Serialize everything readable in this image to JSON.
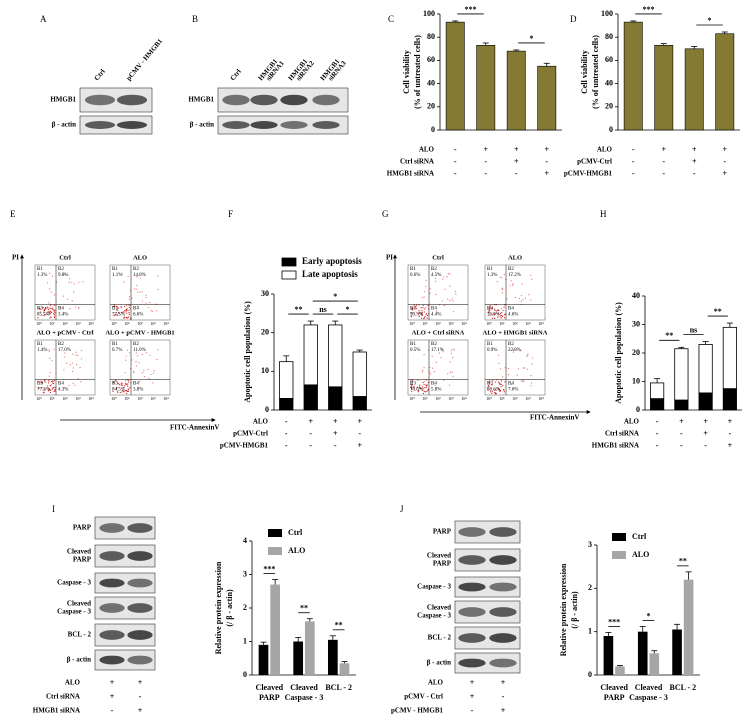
{
  "blot_A": {
    "label": "A",
    "lanes": [
      [
        "Ctrl"
      ],
      [
        "pCMV - HMGB1"
      ]
    ],
    "rows": [
      [
        "HMGB1"
      ],
      [
        "β - actin"
      ]
    ]
  },
  "blot_B": {
    "label": "B",
    "lanes": [
      [
        "Ctrl"
      ],
      [
        "HMGB1",
        "siRNA1"
      ],
      [
        "HMGB1",
        "siRNA2"
      ],
      [
        "HMGB1",
        "siRNA3"
      ]
    ],
    "rows": [
      [
        "HMGB1"
      ],
      [
        "β - actin"
      ]
    ]
  },
  "flow_E": {
    "label": "E",
    "y_axis": "PI",
    "x_axis": "FITC-AnnexinV",
    "ticks": [
      "10⁰",
      "10¹",
      "10²",
      "10³",
      "10⁴"
    ],
    "plots": [
      {
        "title": "Ctrl",
        "quadrants": [
          {
            "name": "B1",
            "value": "1.3%"
          },
          {
            "name": "B2",
            "value": "9.8%"
          },
          {
            "name": "B3",
            "value": "85.5%"
          },
          {
            "name": "B4",
            "value": "3.4%"
          }
        ]
      },
      {
        "title": "ALO",
        "quadrants": [
          {
            "name": "B1",
            "value": "1.1%"
          },
          {
            "name": "B2",
            "value": "14.8%"
          },
          {
            "name": "B3",
            "value": "77.5%"
          },
          {
            "name": "B4",
            "value": "6.6%"
          }
        ]
      },
      {
        "title": "ALO + pCMV - Ctrl",
        "quadrants": [
          {
            "name": "B1",
            "value": "1.4%"
          },
          {
            "name": "B2",
            "value": "17.0%"
          },
          {
            "name": "B3",
            "value": "77.3%"
          },
          {
            "name": "B4",
            "value": "4.3%"
          }
        ]
      },
      {
        "title": "ALO + pCMV - HMGB1",
        "quadrants": [
          {
            "name": "B1",
            "value": "0.7%"
          },
          {
            "name": "B2",
            "value": "11.0%"
          },
          {
            "name": "B3",
            "value": "84.5%"
          },
          {
            "name": "B4",
            "value": "3.8%"
          }
        ]
      }
    ]
  },
  "flow_G": {
    "label": "G",
    "y_axis": "PI",
    "x_axis": "FITC-AnnexinV",
    "ticks": [
      "10⁰",
      "10¹",
      "10²",
      "10³",
      "10⁴"
    ],
    "plots": [
      {
        "title": "Ctrl",
        "quadrants": [
          {
            "name": "B1",
            "value": "0.6%"
          },
          {
            "name": "B2",
            "value": "4.5%"
          },
          {
            "name": "B3",
            "value": "90.5%"
          },
          {
            "name": "B4",
            "value": "4.4%"
          }
        ]
      },
      {
        "title": "ALO",
        "quadrants": [
          {
            "name": "B1",
            "value": "1.3%"
          },
          {
            "name": "B2",
            "value": "17.2%"
          },
          {
            "name": "B3",
            "value": "76.9%"
          },
          {
            "name": "B4",
            "value": "4.6%"
          }
        ]
      },
      {
        "title": "ALO + Ctrl siRNA",
        "quadrants": [
          {
            "name": "B1",
            "value": "0.5%"
          },
          {
            "name": "B2",
            "value": "17.1%"
          },
          {
            "name": "B3",
            "value": "76.6%"
          },
          {
            "name": "B4",
            "value": "5.8%"
          }
        ]
      },
      {
        "title": "ALO + HMGB1 siRNA",
        "quadrants": [
          {
            "name": "B1",
            "value": "0.9%"
          },
          {
            "name": "B2",
            "value": "22.9%"
          },
          {
            "name": "B3",
            "value": "68.6%"
          },
          {
            "name": "B4",
            "value": "7.6%"
          }
        ]
      }
    ]
  },
  "blot_I": {
    "label": "I",
    "rows": [
      [
        "PARP"
      ],
      [
        "Cleaved",
        "PARP"
      ],
      [
        "Caspase - 3"
      ],
      [
        "Cleaved",
        "Caspase - 3"
      ],
      [
        "BCL - 2"
      ],
      [
        "β - actin"
      ]
    ],
    "conditions": [
      {
        "name": "ALO",
        "signs": [
          "+",
          "+"
        ]
      },
      {
        "name": "Ctrl siRNA",
        "signs": [
          "+",
          "-"
        ]
      },
      {
        "name": "HMGB1 siRNA",
        "signs": [
          "-",
          "+"
        ]
      }
    ]
  },
  "blot_J": {
    "label": "J",
    "rows": [
      [
        "PARP"
      ],
      [
        "Cleaved",
        "PARP"
      ],
      [
        "Caspase - 3"
      ],
      [
        "Cleaved",
        "Caspase - 3"
      ],
      [
        "BCL - 2"
      ],
      [
        "β - actin"
      ]
    ],
    "conditions": [
      {
        "name": "ALO",
        "signs": [
          "+",
          "+"
        ]
      },
      {
        "name": "pCMV - Ctrl",
        "signs": [
          "+",
          "-"
        ]
      },
      {
        "name": "pCMV - HMGB1",
        "signs": [
          "-",
          "+"
        ]
      }
    ]
  },
  "chart_data": [
    {
      "label": "C",
      "type": "bar",
      "ylabel": [
        "Cell viability",
        "(% of untreated cells)"
      ],
      "values": [
        93,
        73,
        68,
        55
      ],
      "errors": [
        1,
        2,
        1,
        2.5
      ],
      "color": "#857a33",
      "ylim": [
        0,
        100
      ],
      "yticks": [
        0,
        20,
        40,
        60,
        80,
        100
      ],
      "conditions": [
        {
          "name": "ALO",
          "signs": [
            "-",
            "+",
            "+",
            "+"
          ]
        },
        {
          "name": "Ctrl siRNA",
          "signs": [
            "-",
            "-",
            "+",
            "-"
          ]
        },
        {
          "name": "HMGB1 siRNA",
          "signs": [
            "-",
            "-",
            "-",
            "+"
          ]
        }
      ],
      "significance": [
        {
          "label": "***",
          "between": [
            0,
            1
          ]
        },
        {
          "label": "*",
          "between": [
            2,
            3
          ]
        }
      ]
    },
    {
      "label": "D",
      "type": "bar",
      "ylabel": [
        "Cell viability",
        "(% of untreated cells)"
      ],
      "values": [
        93,
        73,
        70,
        83
      ],
      "errors": [
        1,
        1.5,
        2,
        1.5
      ],
      "color": "#857a33",
      "ylim": [
        0,
        100
      ],
      "yticks": [
        0,
        20,
        40,
        60,
        80,
        100
      ],
      "conditions": [
        {
          "name": "ALO",
          "signs": [
            "-",
            "+",
            "+",
            "+"
          ]
        },
        {
          "name": "pCMV-Ctrl",
          "signs": [
            "-",
            "-",
            "+",
            "-"
          ]
        },
        {
          "name": "pCMV-HMGB1",
          "signs": [
            "-",
            "-",
            "-",
            "+"
          ]
        }
      ],
      "significance": [
        {
          "label": "***",
          "between": [
            0,
            1
          ]
        },
        {
          "label": "*",
          "between": [
            2,
            3
          ]
        }
      ]
    },
    {
      "label": "F",
      "type": "stacked",
      "ylabel": [
        "Apoptotic cell population (%)"
      ],
      "series": [
        {
          "name": "Early apoptosis",
          "color": "#000000",
          "values": [
            3,
            6.5,
            6,
            3.5
          ],
          "errors": [
            0.5,
            1,
            1,
            0.5
          ]
        },
        {
          "name": "Late apoptosis",
          "color": "#ffffff",
          "values": [
            9.5,
            15.5,
            16,
            11.5
          ],
          "errors": [
            1.5,
            1,
            1,
            0.5
          ]
        }
      ],
      "ylim": [
        0,
        30
      ],
      "yticks": [
        0,
        10,
        20,
        30
      ],
      "conditions": [
        {
          "name": "ALO",
          "signs": [
            "-",
            "+",
            "+",
            "+"
          ]
        },
        {
          "name": "pCMV-Ctrl",
          "signs": [
            "-",
            "-",
            "+",
            "-"
          ]
        },
        {
          "name": "pCMV-HMGB1",
          "signs": [
            "-",
            "-",
            "-",
            "+"
          ]
        }
      ],
      "significance": [
        {
          "label": "**",
          "between": [
            0,
            1
          ]
        },
        {
          "label": "ns",
          "between": [
            1,
            2
          ]
        },
        {
          "label": "*",
          "between": [
            1,
            3
          ]
        },
        {
          "label": "*",
          "between": [
            2,
            3
          ]
        }
      ]
    },
    {
      "label": "H",
      "type": "stacked",
      "ylabel": [
        "Apoptotic cell population (%)"
      ],
      "series": [
        {
          "color": "#000000",
          "values": [
            4,
            3.5,
            6,
            7.5
          ],
          "errors": [
            0.8,
            0.8,
            0.8,
            0.8
          ]
        },
        {
          "color": "#ffffff",
          "values": [
            5.5,
            18,
            17,
            21.5
          ],
          "errors": [
            1.5,
            0.5,
            1,
            1.5
          ]
        }
      ],
      "ylim": [
        0,
        40
      ],
      "yticks": [
        0,
        10,
        20,
        30,
        40
      ],
      "conditions": [
        {
          "name": "ALO",
          "signs": [
            "-",
            "+",
            "+",
            "+"
          ]
        },
        {
          "name": "Ctrl siRNA",
          "signs": [
            "-",
            "-",
            "+",
            "-"
          ]
        },
        {
          "name": "HMGB1 siRNA",
          "signs": [
            "-",
            "-",
            "-",
            "+"
          ]
        }
      ],
      "significance": [
        {
          "label": "**",
          "between": [
            0,
            1
          ]
        },
        {
          "label": "ns",
          "between": [
            1,
            2
          ]
        },
        {
          "label": "**",
          "between": [
            2,
            3
          ]
        }
      ]
    },
    {
      "type": "grouped",
      "ylabel": [
        "Relative protein expression",
        "(/ β - actin)"
      ],
      "categories": [
        [
          "Cleaved",
          "PARP"
        ],
        [
          "Cleaved",
          "Caspase - 3"
        ],
        [
          "BCL - 2"
        ]
      ],
      "series": [
        {
          "name": "Ctrl",
          "color": "#000000",
          "values": [
            0.9,
            1.0,
            1.05
          ],
          "errors": [
            0.08,
            0.12,
            0.12
          ]
        },
        {
          "name": "ALO",
          "color": "#a6a6a6",
          "values": [
            2.7,
            1.6,
            0.35
          ],
          "errors": [
            0.15,
            0.08,
            0.05
          ]
        }
      ],
      "ylim": [
        0,
        4
      ],
      "yticks": [
        0,
        1,
        2,
        3,
        4
      ],
      "significance": [
        {
          "label": "***",
          "category": 0
        },
        {
          "label": "**",
          "category": 1
        },
        {
          "label": "**",
          "category": 2
        }
      ]
    },
    {
      "type": "grouped",
      "ylabel": [
        "Relative protein expression",
        "(/ β - actin)"
      ],
      "categories": [
        [
          "Cleaved",
          "PARP"
        ],
        [
          "Cleaved",
          "Caspase - 3"
        ],
        [
          "BCL - 2"
        ]
      ],
      "series": [
        {
          "name": "Ctrl",
          "color": "#000000",
          "values": [
            0.9,
            1.0,
            1.05
          ],
          "errors": [
            0.08,
            0.12,
            0.12
          ]
        },
        {
          "name": "ALO",
          "color": "#a6a6a6",
          "values": [
            0.2,
            0.5,
            2.2
          ],
          "errors": [
            0.02,
            0.06,
            0.18
          ]
        }
      ],
      "ylim": [
        0,
        3
      ],
      "yticks": [
        0,
        1,
        2,
        3
      ],
      "significance": [
        {
          "label": "***",
          "category": 0
        },
        {
          "label": "*",
          "category": 1
        },
        {
          "label": "**",
          "category": 2
        }
      ]
    }
  ]
}
